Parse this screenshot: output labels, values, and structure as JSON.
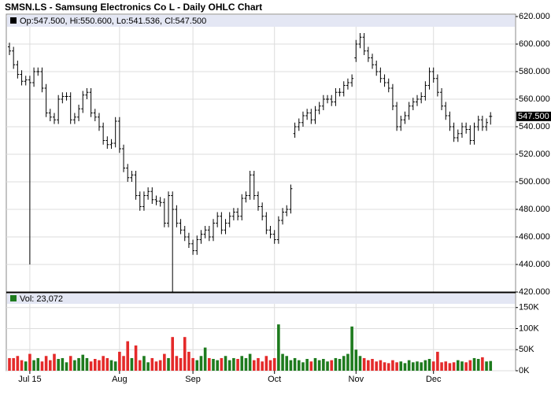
{
  "chart_data": [
    {
      "type": "ohlc",
      "title": "SMSN.LS - Samsung Electronics Co L - Daily OHLC Chart",
      "legend_text": "Op:547.500, Hi:550.600, Lo:541.536, Cl:547.500",
      "last_price_label": "547.500",
      "color": "#000000",
      "grid": true,
      "ylim": [
        420,
        620
      ],
      "yticks": [
        {
          "value": 420,
          "label": "420.000"
        },
        {
          "value": 440,
          "label": "440.000"
        },
        {
          "value": 460,
          "label": "460.000"
        },
        {
          "value": 480,
          "label": "480.000"
        },
        {
          "value": 500,
          "label": "500.000"
        },
        {
          "value": 520,
          "label": "520.000"
        },
        {
          "value": 540,
          "label": "540.000"
        },
        {
          "value": 560,
          "label": "560.000"
        },
        {
          "value": 580,
          "label": "580.000"
        },
        {
          "value": 600,
          "label": "600.000"
        },
        {
          "value": 620,
          "label": "620.000"
        }
      ],
      "open": [
        598,
        595,
        585,
        578,
        573,
        574,
        572,
        580,
        580,
        568,
        550,
        547,
        545,
        560,
        562,
        562,
        545,
        547,
        553,
        563,
        565,
        550,
        547,
        540,
        530,
        527,
        528,
        544,
        524,
        510,
        503,
        505,
        490,
        482,
        490,
        493,
        487,
        486,
        485,
        470,
        490,
        480,
        470,
        465,
        460,
        455,
        450,
        458,
        462,
        465,
        460,
        470,
        475,
        465,
        470,
        475,
        478,
        475,
        488,
        490,
        505,
        490,
        482,
        475,
        465,
        462,
        458,
        472,
        478,
        480,
        535,
        540,
        543,
        548,
        550,
        545,
        552,
        555,
        560,
        560,
        558,
        565,
        565,
        570,
        572,
        590,
        600,
        605,
        595,
        590,
        585,
        580,
        575,
        572,
        568,
        555,
        540,
        545,
        548,
        555,
        558,
        560,
        562,
        570,
        580,
        575,
        565,
        555,
        548,
        540,
        532,
        535,
        540,
        538,
        530,
        540,
        545,
        540,
        547.5
      ],
      "high": [
        601,
        598,
        588,
        581,
        577,
        577,
        583,
        583,
        583,
        571,
        553,
        550,
        563,
        565,
        565,
        565,
        550,
        556,
        566,
        568,
        568,
        553,
        550,
        543,
        533,
        531,
        547,
        547,
        527,
        513,
        508,
        508,
        493,
        493,
        496,
        496,
        490,
        489,
        488,
        493,
        493,
        483,
        473,
        468,
        463,
        458,
        461,
        465,
        468,
        468,
        473,
        478,
        478,
        473,
        478,
        481,
        481,
        491,
        493,
        508,
        508,
        493,
        485,
        478,
        468,
        465,
        475,
        481,
        483,
        498,
        543,
        546,
        551,
        553,
        553,
        555,
        558,
        563,
        563,
        563,
        568,
        568,
        573,
        575,
        578,
        603,
        608,
        608,
        598,
        593,
        588,
        583,
        578,
        575,
        571,
        558,
        548,
        551,
        558,
        561,
        563,
        565,
        573,
        583,
        583,
        578,
        568,
        558,
        551,
        543,
        538,
        543,
        543,
        541,
        543,
        548,
        548,
        546,
        550.6
      ],
      "low": [
        592,
        582,
        575,
        570,
        570,
        440,
        569,
        577,
        565,
        547,
        544,
        542,
        542,
        557,
        559,
        542,
        542,
        544,
        550,
        560,
        547,
        544,
        537,
        527,
        524,
        524,
        525,
        521,
        507,
        500,
        500,
        487,
        479,
        479,
        487,
        484,
        483,
        482,
        467,
        467,
        420,
        467,
        462,
        457,
        452,
        447,
        447,
        455,
        459,
        457,
        457,
        467,
        462,
        462,
        467,
        472,
        472,
        472,
        485,
        487,
        487,
        479,
        472,
        462,
        459,
        455,
        455,
        469,
        475,
        477,
        532,
        537,
        540,
        545,
        542,
        542,
        549,
        552,
        557,
        555,
        555,
        562,
        562,
        567,
        569,
        587,
        597,
        592,
        587,
        582,
        577,
        572,
        569,
        565,
        552,
        537,
        537,
        542,
        545,
        552,
        555,
        557,
        559,
        567,
        572,
        562,
        552,
        545,
        537,
        529,
        529,
        532,
        535,
        527,
        527,
        537,
        537,
        537,
        541.536
      ],
      "close": [
        595,
        585,
        578,
        573,
        574,
        572,
        580,
        580,
        568,
        550,
        547,
        545,
        560,
        562,
        562,
        545,
        547,
        553,
        563,
        565,
        550,
        547,
        540,
        530,
        527,
        528,
        544,
        524,
        510,
        503,
        505,
        490,
        482,
        490,
        493,
        487,
        486,
        485,
        470,
        490,
        480,
        470,
        465,
        460,
        455,
        450,
        458,
        462,
        465,
        460,
        470,
        475,
        465,
        470,
        475,
        478,
        475,
        488,
        490,
        505,
        490,
        482,
        475,
        465,
        462,
        458,
        472,
        478,
        480,
        495,
        540,
        543,
        548,
        550,
        545,
        552,
        555,
        560,
        560,
        558,
        565,
        565,
        570,
        572,
        575,
        600,
        605,
        595,
        590,
        585,
        580,
        575,
        572,
        568,
        555,
        540,
        545,
        548,
        555,
        558,
        560,
        562,
        570,
        580,
        575,
        565,
        555,
        548,
        540,
        532,
        535,
        540,
        538,
        530,
        540,
        545,
        540,
        543,
        547.5
      ]
    },
    {
      "type": "volume",
      "legend_text": "Vol: 23,072",
      "up_color": "#1e7b1e",
      "down_color": "#e42a2a",
      "grid": true,
      "ylim": [
        0,
        185000
      ],
      "yticks": [
        {
          "value": 0,
          "label": "0K"
        },
        {
          "value": 50000,
          "label": "50K"
        },
        {
          "value": 100000,
          "label": "100K"
        },
        {
          "value": 150000,
          "label": "150K"
        }
      ],
      "categories": [
        null,
        null,
        null,
        null,
        null,
        "Jul 15",
        null,
        null,
        null,
        null,
        null,
        null,
        null,
        null,
        null,
        null,
        null,
        null,
        null,
        null,
        null,
        null,
        null,
        null,
        null,
        null,
        null,
        "Aug",
        null,
        null,
        null,
        null,
        null,
        null,
        null,
        null,
        null,
        null,
        null,
        null,
        null,
        null,
        null,
        null,
        null,
        "Sep",
        null,
        null,
        null,
        null,
        null,
        null,
        null,
        null,
        null,
        null,
        null,
        null,
        null,
        null,
        null,
        null,
        null,
        null,
        null,
        "Oct",
        null,
        null,
        null,
        null,
        null,
        null,
        null,
        null,
        null,
        null,
        null,
        null,
        null,
        null,
        null,
        null,
        null,
        null,
        null,
        "Nov",
        null,
        null,
        null,
        null,
        null,
        null,
        null,
        null,
        null,
        null,
        null,
        null,
        null,
        null,
        null,
        null,
        null,
        null,
        "Dec",
        null,
        null,
        null,
        null,
        null,
        null,
        null,
        null,
        null,
        null,
        null,
        null,
        null,
        null
      ],
      "values": [
        30000,
        30000,
        35000,
        25000,
        22000,
        40000,
        25000,
        30000,
        22000,
        35000,
        25000,
        40000,
        28000,
        30000,
        20000,
        35000,
        25000,
        30000,
        38000,
        30000,
        22000,
        28000,
        25000,
        35000,
        30000,
        25000,
        22000,
        45000,
        35000,
        70000,
        30000,
        60000,
        25000,
        35000,
        20000,
        30000,
        22000,
        25000,
        40000,
        30000,
        80000,
        35000,
        30000,
        80000,
        45000,
        30000,
        25000,
        35000,
        55000,
        30000,
        28000,
        25000,
        30000,
        35000,
        25000,
        30000,
        28000,
        35000,
        30000,
        40000,
        25000,
        30000,
        22000,
        35000,
        25000,
        30000,
        110000,
        40000,
        35000,
        25000,
        30000,
        25000,
        20000,
        28000,
        22000,
        30000,
        25000,
        28000,
        22000,
        25000,
        30000,
        28000,
        35000,
        40000,
        105000,
        50000,
        35000,
        30000,
        25000,
        28000,
        22000,
        25000,
        20000,
        18000,
        25000,
        20000,
        22000,
        18000,
        25000,
        20000,
        22000,
        20000,
        25000,
        28000,
        22000,
        45000,
        20000,
        22000,
        18000,
        20000,
        25000,
        22000,
        20000,
        25000,
        30000,
        28000,
        32000,
        22000,
        23072
      ]
    }
  ]
}
